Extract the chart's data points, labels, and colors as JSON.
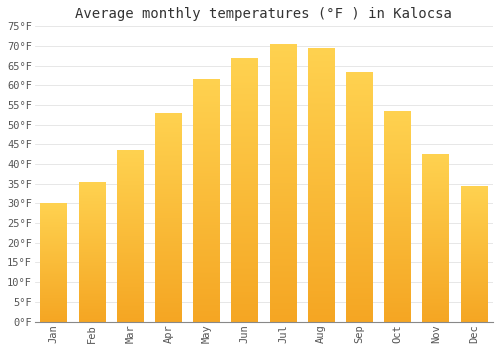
{
  "title": "Average monthly temperatures (°F ) in Kalocsa",
  "months": [
    "Jan",
    "Feb",
    "Mar",
    "Apr",
    "May",
    "Jun",
    "Jul",
    "Aug",
    "Sep",
    "Oct",
    "Nov",
    "Dec"
  ],
  "values": [
    30,
    35.5,
    43.5,
    53,
    61.5,
    67,
    70.5,
    69.5,
    63.5,
    53.5,
    42.5,
    34.5
  ],
  "bar_color_bottom": "#F5A623",
  "bar_color_top": "#FFD966",
  "bar_edge_color": "none",
  "background_color": "#FFFFFF",
  "grid_color": "#DDDDDD",
  "text_color": "#555555",
  "ylim": [
    0,
    75
  ],
  "yticks": [
    0,
    5,
    10,
    15,
    20,
    25,
    30,
    35,
    40,
    45,
    50,
    55,
    60,
    65,
    70,
    75
  ],
  "title_fontsize": 10,
  "tick_fontsize": 7.5,
  "font_family": "monospace"
}
